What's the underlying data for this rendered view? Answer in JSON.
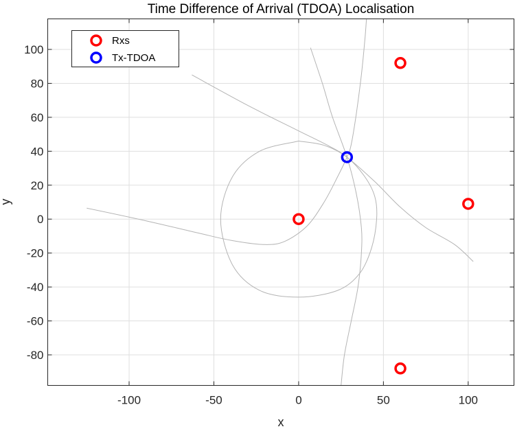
{
  "chart_data": {
    "type": "scatter",
    "title": "Time Difference of Arrival (TDOA) Localisation",
    "xlabel": "x",
    "ylabel": "y",
    "xlim": [
      -148,
      127
    ],
    "ylim": [
      -98,
      118
    ],
    "x_ticks": [
      -100,
      -50,
      0,
      50,
      100
    ],
    "x_tick_labels": [
      "-100",
      "-50",
      "0",
      "50",
      "100"
    ],
    "y_ticks": [
      -80,
      -60,
      -40,
      -20,
      0,
      20,
      40,
      60,
      80,
      100
    ],
    "y_tick_labels": [
      "-80",
      "-60",
      "-40",
      "-20",
      "0",
      "20",
      "40",
      "60",
      "80",
      "100"
    ],
    "grid": true,
    "legend_position": "top-left",
    "series": [
      {
        "name": "Rxs",
        "color": "#ff0000",
        "marker": "circle-open",
        "points": [
          [
            0,
            0
          ],
          [
            60,
            92
          ],
          [
            100,
            9
          ],
          [
            60,
            -88
          ]
        ]
      },
      {
        "name": "Tx-TDOA",
        "color": "#0000ff",
        "marker": "circle-open",
        "points": [
          [
            28.5,
            36.5
          ]
        ]
      }
    ],
    "curves_color": "#b4b4b4",
    "curves": [
      {
        "points": [
          [
            -125,
            6.5
          ],
          [
            -90,
            -1
          ],
          [
            -60,
            -8
          ],
          [
            -40,
            -12.5
          ],
          [
            -20,
            -15
          ],
          [
            -8,
            -13
          ],
          [
            5,
            -4
          ],
          [
            15,
            10
          ],
          [
            23,
            25
          ],
          [
            28.5,
            36.5
          ],
          [
            31,
            44
          ],
          [
            34,
            62
          ],
          [
            37,
            85
          ],
          [
            39,
            105
          ],
          [
            40,
            118
          ]
        ]
      },
      {
        "points": [
          [
            0,
            46
          ],
          [
            15,
            43.5
          ],
          [
            28.5,
            36.5
          ],
          [
            39,
            25
          ],
          [
            45,
            13
          ],
          [
            46,
            0
          ],
          [
            43,
            -17
          ],
          [
            36,
            -32
          ],
          [
            23,
            -42
          ],
          [
            0,
            -46
          ],
          [
            -23,
            -42
          ],
          [
            -39,
            -27
          ],
          [
            -46,
            0
          ],
          [
            -39,
            25
          ],
          [
            -23,
            40
          ],
          [
            0,
            46
          ]
        ]
      },
      {
        "points": [
          [
            -63,
            85
          ],
          [
            -30,
            67
          ],
          [
            0,
            52
          ],
          [
            18,
            43
          ],
          [
            28.5,
            36.5
          ],
          [
            45,
            22
          ],
          [
            60,
            7
          ],
          [
            75,
            -5
          ],
          [
            92,
            -15
          ],
          [
            103,
            -25
          ]
        ]
      },
      {
        "points": [
          [
            7,
            101
          ],
          [
            14,
            80
          ],
          [
            20,
            60
          ],
          [
            28.5,
            36.5
          ],
          [
            34,
            15
          ],
          [
            37,
            -5
          ],
          [
            37,
            -20
          ],
          [
            35,
            -40
          ],
          [
            31,
            -60
          ],
          [
            27,
            -80
          ],
          [
            25,
            -98
          ]
        ]
      }
    ]
  }
}
